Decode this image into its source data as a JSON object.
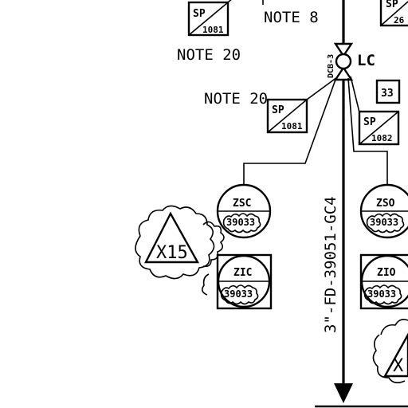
{
  "notes": {
    "top_label": "NOTE 8",
    "top_left_note": "NOTE 20",
    "mid_note": "NOTE 20"
  },
  "valve": {
    "label": "LC",
    "side_tag": "DCB-3"
  },
  "specials": {
    "sp_top_left": {
      "top": "SP",
      "num": "1081"
    },
    "sp_top_right": {
      "top": "SP",
      "num": "26"
    },
    "sp_mid_left": {
      "top": "SP",
      "num": "1081"
    },
    "sp_mid_right": {
      "top": "SP",
      "num": "1082"
    }
  },
  "box_33": "33",
  "line_number": "3\"-FD-39051-GC4",
  "instruments": {
    "zsc": {
      "tag": "ZSC",
      "loop": "39033"
    },
    "zic": {
      "tag": "ZIC",
      "loop": "39033"
    },
    "zso": {
      "tag": "ZSO",
      "loop": "39033"
    },
    "zio": {
      "tag": "ZIO",
      "loop": "39033"
    }
  },
  "revision_triangles": {
    "left": "X15",
    "right": "X"
  }
}
